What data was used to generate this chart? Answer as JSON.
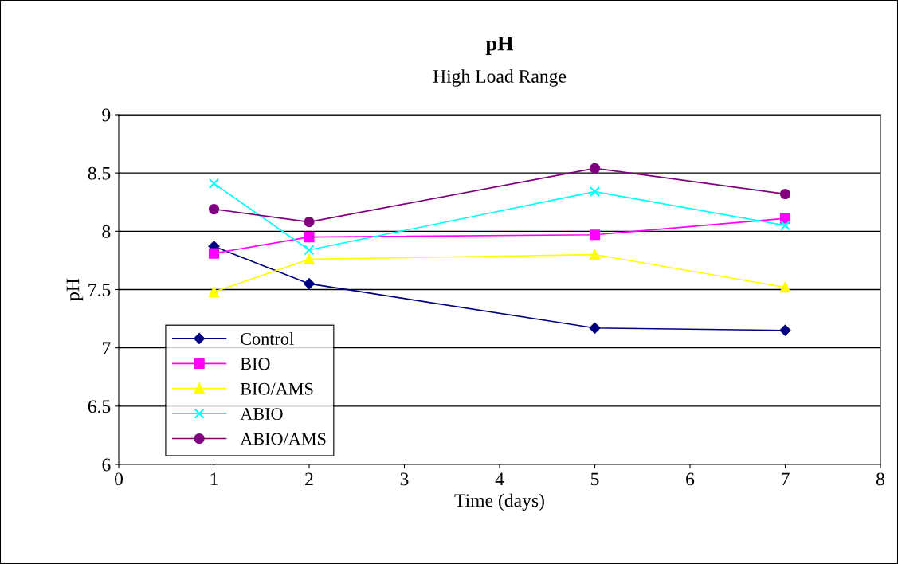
{
  "chart_data": {
    "type": "line",
    "title": "pH",
    "subtitle": "High Load Range",
    "xlabel": "Time (days)",
    "ylabel": "pH",
    "x": [
      1,
      2,
      5,
      7
    ],
    "series": [
      {
        "name": "Control",
        "color": "#000080",
        "marker": "diamond",
        "values": [
          7.87,
          7.55,
          7.17,
          7.15
        ]
      },
      {
        "name": "BIO",
        "color": "#ff00ff",
        "marker": "square",
        "values": [
          7.81,
          7.95,
          7.97,
          8.11
        ]
      },
      {
        "name": "BIO/AMS",
        "color": "#ffff00",
        "marker": "triangle",
        "values": [
          7.48,
          7.76,
          7.8,
          7.52
        ]
      },
      {
        "name": "ABIO",
        "color": "#00ffff",
        "marker": "cross",
        "values": [
          8.41,
          7.84,
          8.34,
          8.05
        ]
      },
      {
        "name": "ABIO/AMS",
        "color": "#800080",
        "marker": "circle",
        "values": [
          8.19,
          8.08,
          8.54,
          8.32
        ]
      }
    ],
    "xlim": [
      0,
      8
    ],
    "xticks": [
      0,
      1,
      2,
      3,
      4,
      5,
      6,
      7,
      8
    ],
    "ylim": [
      6,
      9
    ],
    "yticks": [
      6,
      6.5,
      7,
      7.5,
      8,
      8.5,
      9
    ],
    "grid": "y",
    "legend": "bottom left",
    "line_style": "solid"
  }
}
